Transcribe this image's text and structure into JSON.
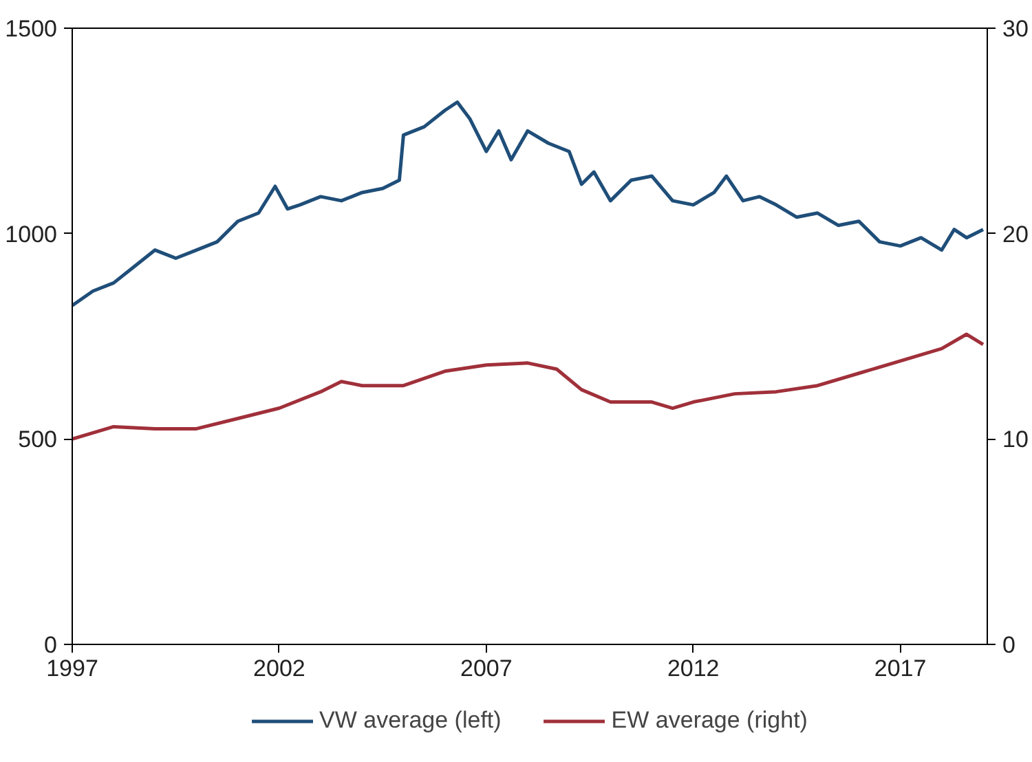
{
  "chart_data": {
    "type": "line",
    "xlim": [
      1997,
      2019.1
    ],
    "xticks": [
      1997,
      2002,
      2007,
      2012,
      2017
    ],
    "ylim": [
      0,
      1500
    ],
    "yticks": [
      0,
      500,
      1000,
      1500
    ],
    "y2lim": [
      0,
      30
    ],
    "y2ticks": [
      0,
      10,
      20,
      30
    ],
    "grid": false,
    "legend": "bottom",
    "marker": "none",
    "line_style": "solid",
    "series": [
      {
        "name": "VW average (left)",
        "color": "#1f4e79",
        "x": [
          1997.0,
          1997.5,
          1998.0,
          1998.5,
          1999.0,
          1999.5,
          2000.0,
          2000.5,
          2001.0,
          2001.5,
          2001.9,
          2002.2,
          2002.5,
          2003.0,
          2003.5,
          2004.0,
          2004.5,
          2004.9,
          2005.0,
          2005.5,
          2006.0,
          2006.3,
          2006.6,
          2007.0,
          2007.3,
          2007.6,
          2008.0,
          2008.5,
          2009.0,
          2009.3,
          2009.6,
          2010.0,
          2010.5,
          2011.0,
          2011.5,
          2012.0,
          2012.5,
          2012.8,
          2013.2,
          2013.6,
          2014.0,
          2014.5,
          2015.0,
          2015.5,
          2016.0,
          2016.5,
          2017.0,
          2017.5,
          2018.0,
          2018.3,
          2018.6,
          2019.0
        ],
        "values": [
          825,
          860,
          880,
          920,
          960,
          940,
          960,
          980,
          1030,
          1050,
          1115,
          1060,
          1070,
          1090,
          1080,
          1100,
          1110,
          1130,
          1240,
          1260,
          1300,
          1320,
          1280,
          1200,
          1250,
          1180,
          1250,
          1220,
          1200,
          1120,
          1150,
          1080,
          1130,
          1140,
          1080,
          1070,
          1100,
          1140,
          1080,
          1090,
          1070,
          1040,
          1050,
          1020,
          1030,
          980,
          970,
          990,
          960,
          1010,
          990,
          1010
        ]
      },
      {
        "name": "EW average (right)",
        "color": "#a0303a",
        "axis": "y2",
        "x": [
          1997.0,
          1998.0,
          1999.0,
          2000.0,
          2001.0,
          2002.0,
          2003.0,
          2003.5,
          2004.0,
          2005.0,
          2006.0,
          2007.0,
          2008.0,
          2008.7,
          2009.3,
          2010.0,
          2011.0,
          2011.5,
          2012.0,
          2013.0,
          2014.0,
          2015.0,
          2016.0,
          2017.0,
          2018.0,
          2018.6,
          2019.0
        ],
        "values": [
          10.0,
          10.6,
          10.5,
          10.5,
          11.0,
          11.5,
          12.3,
          12.8,
          12.6,
          12.6,
          13.3,
          13.6,
          13.7,
          13.4,
          12.4,
          11.8,
          11.8,
          11.5,
          11.8,
          12.2,
          12.3,
          12.6,
          13.2,
          13.8,
          14.4,
          15.1,
          14.6
        ]
      }
    ]
  }
}
